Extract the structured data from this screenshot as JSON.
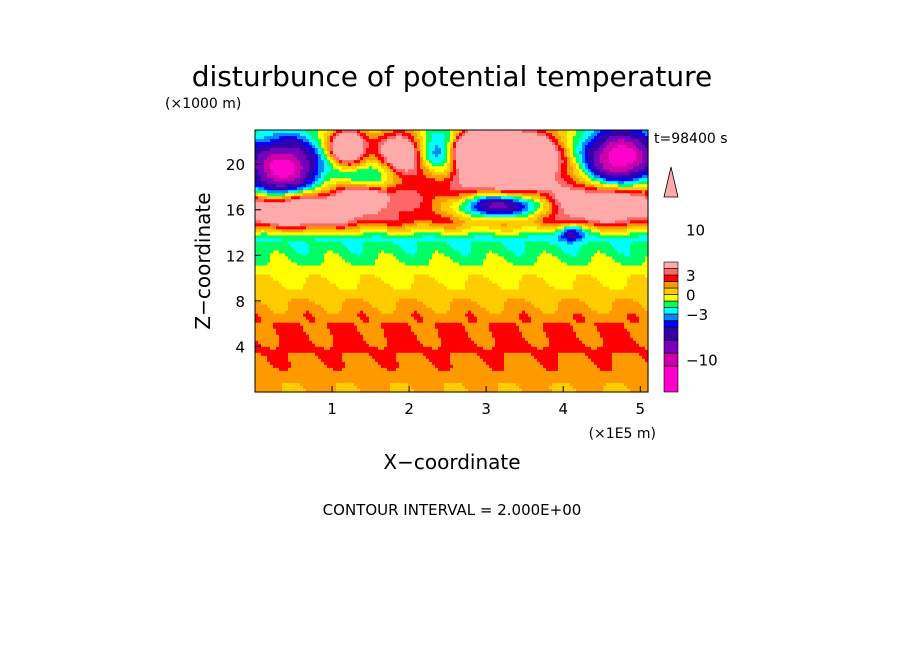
{
  "chart_data": {
    "type": "heatmap",
    "title": "disturbunce of potential temperature",
    "time_label": "t=98400 s",
    "xlabel": "X−coordinate",
    "ylabel": "Z−coordinate",
    "x_unit": "(×1E5 m)",
    "y_unit": "(×1000 m)",
    "xlim": [
      0,
      5.1
    ],
    "ylim": [
      0,
      23
    ],
    "x_ticks": [
      1,
      2,
      3,
      4,
      5
    ],
    "y_ticks": [
      4,
      8,
      12,
      16,
      20
    ],
    "footer": "CONTOUR INTERVAL = 2.000E+00",
    "contour_interval": 2,
    "colorbar": {
      "tick_labels": [
        "10",
        "3",
        "0",
        "−3",
        "−10"
      ],
      "levels": [
        -15,
        -11,
        -9,
        -7,
        -5,
        -4,
        -3,
        -2,
        -1,
        0,
        1,
        2,
        3,
        4,
        5,
        9,
        11,
        15
      ],
      "colors": [
        "#ff00cc",
        "#cc00aa",
        "#7700bb",
        "#3300aa",
        "#0000ff",
        "#0088ff",
        "#00ffff",
        "#00ff66",
        "#ffff00",
        "#ffcc00",
        "#ff9900",
        "#ff0000",
        "#ff6666",
        "#ffaaaa"
      ],
      "extend": "max"
    },
    "grid": false,
    "features": [
      {
        "kind": "negative",
        "x": 0.35,
        "z": 19.5,
        "amp": -14,
        "sx": 0.38,
        "sz": 1.9
      },
      {
        "kind": "negative",
        "x": 4.75,
        "z": 20.5,
        "amp": -14,
        "sx": 0.38,
        "sz": 1.7
      },
      {
        "kind": "negative",
        "x": 3.2,
        "z": 16.4,
        "amp": -11,
        "sx": 0.42,
        "sz": 0.8
      },
      {
        "kind": "negative",
        "x": 2.4,
        "z": 21.0,
        "amp": -7,
        "sx": 0.22,
        "sz": 1.4
      },
      {
        "kind": "negative",
        "x": 1.5,
        "z": 19.0,
        "amp": -5,
        "sx": 0.25,
        "sz": 1.0
      },
      {
        "kind": "negative",
        "x": 4.1,
        "z": 14.0,
        "amp": -5,
        "sx": 0.12,
        "sz": 0.5
      },
      {
        "kind": "positive",
        "x": 3.25,
        "z": 20.5,
        "amp": 13,
        "sx": 0.45,
        "sz": 1.6
      },
      {
        "kind": "positive",
        "x": 2.9,
        "z": 21.4,
        "amp": 14,
        "sx": 0.18,
        "sz": 0.8
      },
      {
        "kind": "positive",
        "x": 1.9,
        "z": 21.0,
        "amp": 8,
        "sx": 0.18,
        "sz": 1.2
      },
      {
        "kind": "positive",
        "x": 1.2,
        "z": 21.5,
        "amp": 10,
        "sx": 0.15,
        "sz": 1.0
      },
      {
        "kind": "positive",
        "x": 0.5,
        "z": 16.0,
        "amp": 7,
        "sx": 0.5,
        "sz": 1.0
      },
      {
        "kind": "positive",
        "x": 4.5,
        "z": 16.5,
        "amp": 5,
        "sx": 0.5,
        "sz": 1.0
      },
      {
        "kind": "positive",
        "x": 1.4,
        "z": 17.0,
        "amp": 8,
        "sx": 0.18,
        "sz": 0.6
      }
    ],
    "background_profile": [
      {
        "z": 0,
        "value": 1.0
      },
      {
        "z": 4,
        "value": 2.2
      },
      {
        "z": 6,
        "value": 2.0
      },
      {
        "z": 8.5,
        "value": 0.6
      },
      {
        "z": 10,
        "value": -0.2
      },
      {
        "z": 12,
        "value": -1.4
      },
      {
        "z": 13.5,
        "value": -2.2
      },
      {
        "z": 15,
        "value": 2.5
      },
      {
        "z": 17,
        "value": 3.5
      },
      {
        "z": 23,
        "value": 0.0
      }
    ]
  }
}
